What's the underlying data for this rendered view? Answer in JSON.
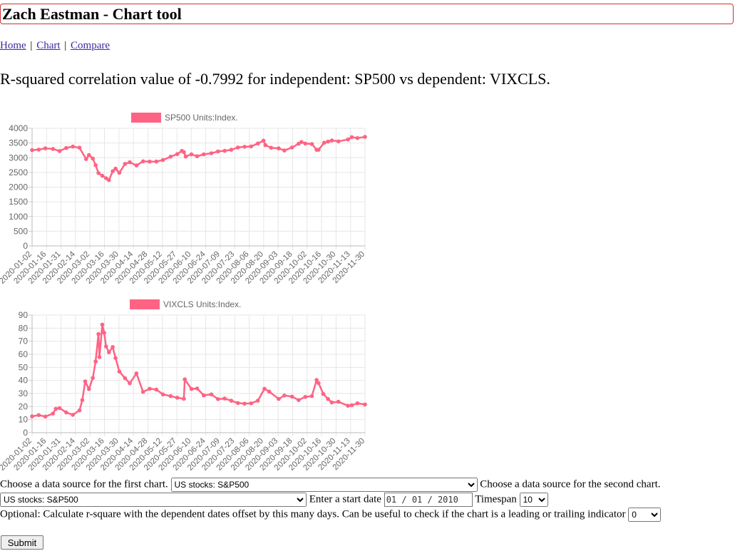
{
  "header": {
    "title": "Zach Eastman - Chart tool"
  },
  "nav": {
    "items": [
      "Home",
      "Chart",
      "Compare"
    ],
    "separator": "|"
  },
  "correlation_text": "R-squared correlation value of -0.7992 for independent: SP500 vs dependent: VIXCLS.",
  "form": {
    "first_label": "Choose a data source for the first chart.",
    "first_value": "US stocks: S&P500",
    "second_label": "Choose a data source for the second chart.",
    "second_value": "US stocks: S&P500",
    "start_label": "Enter a start date",
    "start_value": "01 / 01 / 2010",
    "timespan_label": "Timespan",
    "timespan_value": "10",
    "offset_label": "Optional: Calculate r-square with the dependent dates offset by this many days. Can be useful to check if the chart is a leading or trailing indicator",
    "offset_value": "0",
    "submit_label": "Submit"
  },
  "colors": {
    "series": "#ff6384",
    "grid": "#e6e6e6",
    "axis_text": "#666666"
  },
  "chart_data": [
    {
      "type": "line",
      "legend": "SP500 Units:Index.",
      "ylim": [
        0,
        4000
      ],
      "yticks": [
        0,
        500,
        1000,
        1500,
        2000,
        2500,
        3000,
        3500,
        4000
      ],
      "xtick_labels": [
        "2020-01-02",
        "2020-01-16",
        "2020-01-31",
        "2020-02-14",
        "2020-03-02",
        "2020-03-16",
        "2020-03-30",
        "2020-04-14",
        "2020-04-28",
        "2020-05-12",
        "2020-05-27",
        "2020-06-10",
        "2020-06-24",
        "2020-07-09",
        "2020-07-23",
        "2020-08-06",
        "2020-08-20",
        "2020-09-03",
        "2020-09-18",
        "2020-10-02",
        "2020-10-16",
        "2020-10-30",
        "2020-11-13",
        "2020-11-30"
      ],
      "x": [
        "2020-01-02",
        "2020-01-09",
        "2020-01-16",
        "2020-01-24",
        "2020-01-31",
        "2020-02-07",
        "2020-02-14",
        "2020-02-21",
        "2020-02-28",
        "2020-03-02",
        "2020-03-06",
        "2020-03-09",
        "2020-03-12",
        "2020-03-16",
        "2020-03-20",
        "2020-03-23",
        "2020-03-27",
        "2020-03-30",
        "2020-04-03",
        "2020-04-09",
        "2020-04-14",
        "2020-04-21",
        "2020-04-28",
        "2020-05-05",
        "2020-05-12",
        "2020-05-19",
        "2020-05-27",
        "2020-06-03",
        "2020-06-08",
        "2020-06-10",
        "2020-06-12",
        "2020-06-18",
        "2020-06-24",
        "2020-07-01",
        "2020-07-09",
        "2020-07-16",
        "2020-07-23",
        "2020-07-30",
        "2020-08-06",
        "2020-08-13",
        "2020-08-20",
        "2020-08-27",
        "2020-09-02",
        "2020-09-04",
        "2020-09-10",
        "2020-09-18",
        "2020-09-24",
        "2020-10-02",
        "2020-10-09",
        "2020-10-12",
        "2020-10-16",
        "2020-10-23",
        "2020-10-28",
        "2020-10-30",
        "2020-11-05",
        "2020-11-09",
        "2020-11-13",
        "2020-11-20",
        "2020-11-30",
        "2020-12-04",
        "2020-12-10",
        "2020-12-18"
      ],
      "values": [
        3258,
        3275,
        3320,
        3300,
        3226,
        3330,
        3380,
        3340,
        2954,
        3090,
        2972,
        2746,
        2480,
        2386,
        2304,
        2237,
        2541,
        2627,
        2488,
        2790,
        2846,
        2736,
        2878,
        2868,
        2870,
        2922,
        3036,
        3122,
        3232,
        3190,
        3041,
        3115,
        3050,
        3115,
        3152,
        3215,
        3235,
        3271,
        3349,
        3373,
        3385,
        3484,
        3580,
        3427,
        3339,
        3319,
        3246,
        3348,
        3477,
        3534,
        3483,
        3465,
        3271,
        3270,
        3510,
        3550,
        3585,
        3557,
        3621,
        3699,
        3668,
        3709
      ]
    },
    {
      "type": "line",
      "legend": "VIXCLS Units:Index.",
      "ylim": [
        0,
        90
      ],
      "yticks": [
        0,
        10,
        20,
        30,
        40,
        50,
        60,
        70,
        80,
        90
      ],
      "xtick_labels": [
        "2020-01-02",
        "2020-01-16",
        "2020-01-31",
        "2020-02-14",
        "2020-03-02",
        "2020-03-16",
        "2020-03-30",
        "2020-04-14",
        "2020-04-28",
        "2020-05-12",
        "2020-05-27",
        "2020-06-10",
        "2020-06-24",
        "2020-07-09",
        "2020-07-23",
        "2020-08-06",
        "2020-08-20",
        "2020-09-03",
        "2020-09-18",
        "2020-10-02",
        "2020-10-16",
        "2020-10-30",
        "2020-11-13",
        "2020-11-30"
      ],
      "x": [
        "2020-01-02",
        "2020-01-09",
        "2020-01-16",
        "2020-01-24",
        "2020-01-27",
        "2020-01-31",
        "2020-02-07",
        "2020-02-14",
        "2020-02-21",
        "2020-02-24",
        "2020-02-27",
        "2020-03-02",
        "2020-03-06",
        "2020-03-09",
        "2020-03-12",
        "2020-03-13",
        "2020-03-16",
        "2020-03-18",
        "2020-03-20",
        "2020-03-23",
        "2020-03-27",
        "2020-03-30",
        "2020-04-03",
        "2020-04-09",
        "2020-04-14",
        "2020-04-21",
        "2020-04-28",
        "2020-05-05",
        "2020-05-12",
        "2020-05-19",
        "2020-05-27",
        "2020-06-03",
        "2020-06-10",
        "2020-06-11",
        "2020-06-18",
        "2020-06-24",
        "2020-07-01",
        "2020-07-09",
        "2020-07-16",
        "2020-07-23",
        "2020-07-30",
        "2020-08-06",
        "2020-08-13",
        "2020-08-20",
        "2020-08-27",
        "2020-09-03",
        "2020-09-08",
        "2020-09-18",
        "2020-09-24",
        "2020-10-02",
        "2020-10-09",
        "2020-10-16",
        "2020-10-23",
        "2020-10-28",
        "2020-10-30",
        "2020-11-04",
        "2020-11-09",
        "2020-11-13",
        "2020-11-20",
        "2020-11-30",
        "2020-12-04",
        "2020-12-10",
        "2020-12-18"
      ],
      "values": [
        12.5,
        13.5,
        12.3,
        14.6,
        18.2,
        18.8,
        15.5,
        13.7,
        17.1,
        25,
        39.2,
        33.4,
        41.9,
        54.5,
        75.5,
        57.8,
        82.7,
        76.5,
        66,
        61.6,
        65.5,
        57.1,
        46.8,
        41.7,
        37.8,
        45.4,
        31.2,
        33.6,
        33,
        29.3,
        28,
        26.8,
        25.9,
        40.8,
        33.5,
        33.8,
        28.6,
        29.3,
        25.7,
        26.1,
        24.5,
        22.7,
        22.2,
        22.5,
        24.5,
        33.6,
        31.5,
        25.8,
        28.5,
        27.6,
        25,
        27.4,
        28,
        40.3,
        38,
        29.6,
        25.8,
        23.1,
        23.7,
        20.6,
        21,
        22.5,
        21.6
      ]
    }
  ]
}
